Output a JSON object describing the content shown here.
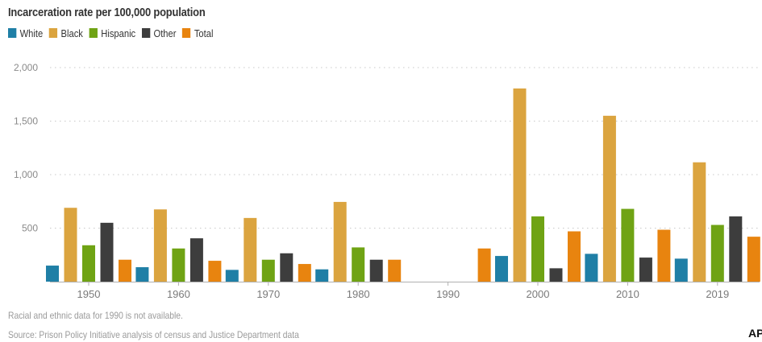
{
  "chart_data": {
    "type": "bar",
    "title": "Incarceration rate per 100,000 population",
    "categories": [
      "1950",
      "1960",
      "1970",
      "1980",
      "1990",
      "2000",
      "2010",
      "2019"
    ],
    "series": [
      {
        "name": "White",
        "color": "#1f7fa6",
        "values": [
          150,
          135,
          110,
          115,
          null,
          240,
          260,
          215
        ]
      },
      {
        "name": "Black",
        "color": "#dba43f",
        "values": [
          690,
          675,
          595,
          745,
          null,
          1805,
          1550,
          1115
        ]
      },
      {
        "name": "Hispanic",
        "color": "#6fa314",
        "values": [
          340,
          310,
          205,
          320,
          null,
          610,
          680,
          530
        ]
      },
      {
        "name": "Other",
        "color": "#3d3d3d",
        "values": [
          550,
          405,
          265,
          205,
          null,
          125,
          225,
          610
        ]
      },
      {
        "name": "Total",
        "color": "#e8840f",
        "values": [
          205,
          195,
          165,
          205,
          310,
          470,
          485,
          420
        ]
      }
    ],
    "y_ticks": [
      {
        "value": 500,
        "label": "500"
      },
      {
        "value": 1000,
        "label": "1,000"
      },
      {
        "value": 1500,
        "label": "1,500"
      },
      {
        "value": 2000,
        "label": "2,000"
      }
    ],
    "ylim": [
      0,
      2000
    ],
    "grid": "dotted horizontal",
    "legend_position": "top-left",
    "notes": [
      "Racial and ethnic data for 1990 is not available.",
      "Source: Prison Policy Initiative analysis of census and Justice Department data"
    ],
    "logo_text": "AP"
  }
}
